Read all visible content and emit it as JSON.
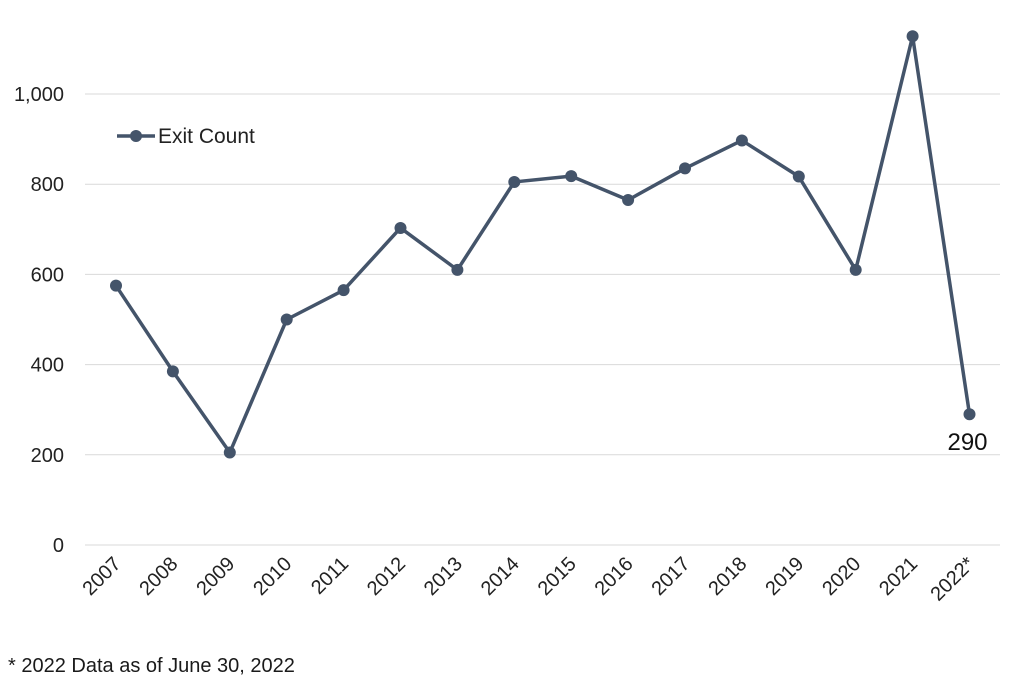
{
  "chart_data": {
    "type": "line",
    "categories": [
      "2007",
      "2008",
      "2009",
      "2010",
      "2011",
      "2012",
      "2013",
      "2014",
      "2015",
      "2016",
      "2017",
      "2018",
      "2019",
      "2020",
      "2021",
      "2022*"
    ],
    "series": [
      {
        "name": "Exit Count",
        "values": [
          575,
          385,
          205,
          500,
          565,
          703,
          610,
          805,
          818,
          765,
          835,
          897,
          817,
          610,
          1128,
          290
        ],
        "color": "#44546a"
      }
    ],
    "y_ticks": [
      "0",
      "200",
      "400",
      "600",
      "800",
      "1,000"
    ],
    "y_tick_values": [
      0,
      200,
      400,
      600,
      800,
      1000
    ],
    "ylim": [
      0,
      1150
    ],
    "grid": true,
    "legend_position": "top-left",
    "data_labels": [
      {
        "category": "2022*",
        "text": "290"
      }
    ],
    "title": "",
    "xlabel": "",
    "ylabel": ""
  },
  "footnote": "* 2022 Data as of June 30, 2022"
}
